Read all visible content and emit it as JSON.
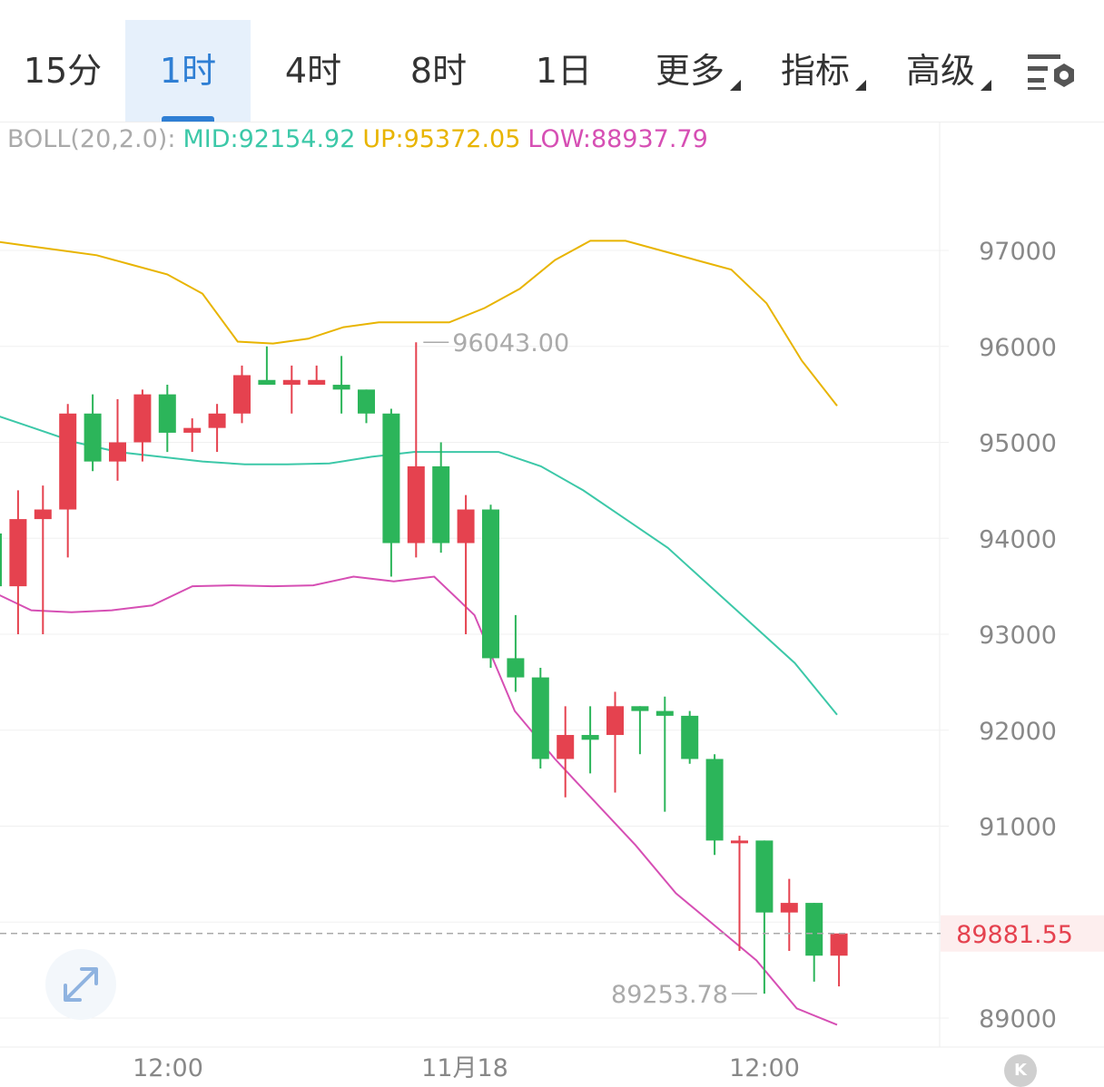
{
  "tabs": [
    {
      "label": "15分",
      "active": false,
      "dropdown": false
    },
    {
      "label": "1时",
      "active": true,
      "dropdown": false
    },
    {
      "label": "4时",
      "active": false,
      "dropdown": false
    },
    {
      "label": "8时",
      "active": false,
      "dropdown": false
    },
    {
      "label": "1日",
      "active": false,
      "dropdown": false
    },
    {
      "label": "更多",
      "active": false,
      "dropdown": true
    },
    {
      "label": "指标",
      "active": false,
      "dropdown": true
    },
    {
      "label": "高级",
      "active": false,
      "dropdown": true
    }
  ],
  "icons": {
    "settings": "chart-settings-icon",
    "expand": "expand-arrows-icon",
    "kline": "kline-k-icon"
  },
  "kline_button_label": "K",
  "boll": {
    "label": "BOLL(20,2.0):",
    "mid": "MID:92154.92",
    "up": "UP:95372.05",
    "low": "LOW:88937.79"
  },
  "colors": {
    "up_candle": "#e5424f",
    "down_candle": "#2cb55a",
    "mid_line": "#3cc8a8",
    "up_line": "#e8b400",
    "low_line": "#d64fb4",
    "active_tab": "#2f7fd4"
  },
  "chart_data": {
    "type": "candlestick",
    "y_ticks": [
      89000,
      90000,
      91000,
      92000,
      93000,
      94000,
      95000,
      96000,
      97000
    ],
    "y_tick_labels": [
      "89000",
      "",
      "91000",
      "92000",
      "93000",
      "94000",
      "95000",
      "96000",
      "97000"
    ],
    "x_tick_labels": [
      "12:00",
      "11月18",
      "12:00"
    ],
    "current_price": 89881.55,
    "current_price_label": "89881.55",
    "high_marker": {
      "value": 96043.0,
      "label": "96043.00"
    },
    "low_marker": {
      "value": 89253.78,
      "label": "89253.78"
    },
    "candles": [
      {
        "o": 94050,
        "h": 94050,
        "l": 93400,
        "c": 93500
      },
      {
        "o": 93500,
        "h": 94500,
        "l": 93000,
        "c": 94200
      },
      {
        "o": 94200,
        "h": 94550,
        "l": 93000,
        "c": 94300
      },
      {
        "o": 94300,
        "h": 95400,
        "l": 93800,
        "c": 95300
      },
      {
        "o": 95300,
        "h": 95500,
        "l": 94700,
        "c": 94800
      },
      {
        "o": 94800,
        "h": 95450,
        "l": 94600,
        "c": 95000
      },
      {
        "o": 95000,
        "h": 95550,
        "l": 94800,
        "c": 95500
      },
      {
        "o": 95500,
        "h": 95600,
        "l": 94900,
        "c": 95100
      },
      {
        "o": 95100,
        "h": 95250,
        "l": 94900,
        "c": 95150
      },
      {
        "o": 95150,
        "h": 95400,
        "l": 94900,
        "c": 95300
      },
      {
        "o": 95300,
        "h": 95800,
        "l": 95200,
        "c": 95700
      },
      {
        "o": 95650,
        "h": 96000,
        "l": 95600,
        "c": 95600
      },
      {
        "o": 95600,
        "h": 95800,
        "l": 95300,
        "c": 95650
      },
      {
        "o": 95600,
        "h": 95800,
        "l": 95600,
        "c": 95650
      },
      {
        "o": 95600,
        "h": 95900,
        "l": 95300,
        "c": 95550
      },
      {
        "o": 95550,
        "h": 95550,
        "l": 95200,
        "c": 95300
      },
      {
        "o": 95300,
        "h": 95350,
        "l": 93600,
        "c": 93950
      },
      {
        "o": 93950,
        "h": 96043,
        "l": 93800,
        "c": 94750
      },
      {
        "o": 94750,
        "h": 95000,
        "l": 93850,
        "c": 93950
      },
      {
        "o": 93950,
        "h": 94450,
        "l": 93000,
        "c": 94300
      },
      {
        "o": 94300,
        "h": 94350,
        "l": 92650,
        "c": 92750
      },
      {
        "o": 92750,
        "h": 93200,
        "l": 92400,
        "c": 92550
      },
      {
        "o": 92550,
        "h": 92650,
        "l": 91600,
        "c": 91700
      },
      {
        "o": 91700,
        "h": 92250,
        "l": 91300,
        "c": 91950
      },
      {
        "o": 91950,
        "h": 92250,
        "l": 91550,
        "c": 91900
      },
      {
        "o": 91950,
        "h": 92400,
        "l": 91350,
        "c": 92250
      },
      {
        "o": 92250,
        "h": 92250,
        "l": 91750,
        "c": 92200
      },
      {
        "o": 92200,
        "h": 92350,
        "l": 91150,
        "c": 92150
      },
      {
        "o": 92150,
        "h": 92200,
        "l": 91650,
        "c": 91700
      },
      {
        "o": 91700,
        "h": 91750,
        "l": 90700,
        "c": 90850
      },
      {
        "o": 90850,
        "h": 90900,
        "l": 89700,
        "c": 90850
      },
      {
        "o": 90850,
        "h": 90850,
        "l": 89253.78,
        "c": 90100
      },
      {
        "o": 90100,
        "h": 90450,
        "l": 89700,
        "c": 90200
      },
      {
        "o": 90200,
        "h": 90200,
        "l": 89380,
        "c": 89650
      },
      {
        "o": 89650,
        "h": 89880,
        "l": 89330,
        "c": 89881.55
      }
    ],
    "series": [
      {
        "name": "UP",
        "values": [
          97100,
          97050,
          97000,
          96950,
          96850,
          96750,
          96550,
          96050,
          96030,
          96080,
          96200,
          96250,
          96250,
          96250,
          96400,
          96600,
          96900,
          97100,
          97100,
          97000,
          96900,
          96800,
          96450,
          95850,
          95380
        ]
      },
      {
        "name": "MID",
        "values": [
          95300,
          95150,
          95000,
          94900,
          94850,
          94800,
          94770,
          94770,
          94780,
          94850,
          94900,
          94900,
          94900,
          94750,
          94500,
          94200,
          93900,
          93500,
          93100,
          92700,
          92160
        ]
      },
      {
        "name": "LOW",
        "values": [
          93450,
          93250,
          93230,
          93250,
          93300,
          93500,
          93510,
          93500,
          93510,
          93600,
          93550,
          93600,
          93200,
          92200,
          91700,
          91250,
          90800,
          90300,
          89950,
          89600,
          89100,
          88930
        ]
      }
    ]
  }
}
